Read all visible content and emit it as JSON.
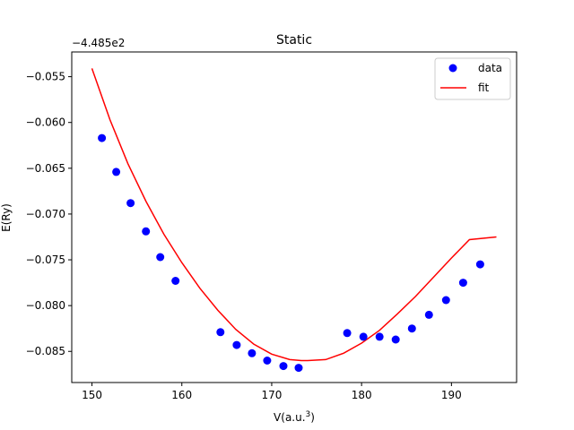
{
  "chart_data": {
    "type": "scatter",
    "title": "Static",
    "xlabel": "V(a.u.",
    "xlabel_sup": "3",
    "xlabel_close": ")",
    "ylabel": "E(Ry)",
    "offset_text": "−4.485e2",
    "xlim": [
      147.75,
      197.25
    ],
    "ylim": [
      -0.0884,
      -0.0523
    ],
    "xticks": [
      150,
      160,
      170,
      180,
      190
    ],
    "yticks": [
      -0.085,
      -0.08,
      -0.075,
      -0.07,
      -0.065,
      -0.06,
      -0.055
    ],
    "xtick_labels": [
      "150",
      "160",
      "170",
      "180",
      "190"
    ],
    "ytick_labels": [
      "−0.085",
      "−0.080",
      "−0.075",
      "−0.070",
      "−0.065",
      "−0.060",
      "−0.055"
    ],
    "legend_position": "top-right",
    "series": [
      {
        "name": "data",
        "kind": "scatter",
        "color": "#0000ff",
        "x": [
          151.1,
          152.7,
          154.3,
          156.0,
          157.6,
          159.3,
          164.3,
          166.1,
          167.8,
          169.5,
          171.3,
          173.0,
          178.4,
          180.2,
          182.0,
          183.8,
          185.6,
          187.5,
          189.4,
          191.3,
          193.2
        ],
        "y": [
          -0.0617,
          -0.0654,
          -0.0688,
          -0.0719,
          -0.0747,
          -0.0773,
          -0.0829,
          -0.0843,
          -0.0852,
          -0.086,
          -0.0866,
          -0.0868,
          -0.083,
          -0.0834,
          -0.0834,
          -0.0837,
          -0.0825,
          -0.081,
          -0.0794,
          -0.0775,
          -0.0755
        ]
      },
      {
        "name": "fit",
        "kind": "line",
        "color": "#ff0000",
        "x": [
          150,
          152,
          154,
          156,
          158,
          160,
          162,
          164,
          166,
          168,
          170,
          172,
          173.3,
          174,
          176,
          178,
          180,
          182,
          184,
          186,
          188,
          190,
          192,
          195
        ],
        "y": [
          -0.0541,
          -0.0597,
          -0.0645,
          -0.0686,
          -0.0722,
          -0.0753,
          -0.0781,
          -0.0805,
          -0.0826,
          -0.0842,
          -0.0853,
          -0.0859,
          -0.086,
          -0.086,
          -0.0859,
          -0.0852,
          -0.0841,
          -0.0827,
          -0.0809,
          -0.079,
          -0.0769,
          -0.0748,
          -0.0728,
          -0.0725
        ]
      }
    ]
  }
}
